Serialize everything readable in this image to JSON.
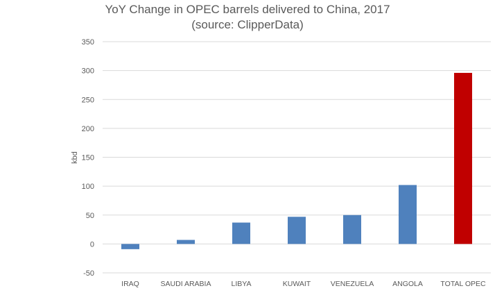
{
  "chart_data": {
    "type": "bar",
    "title": "YoY Change in OPEC barrels delivered to China, 2017",
    "subtitle": "(source: ClipperData)",
    "ylabel": "kbd",
    "xlabel": "",
    "ylim": [
      -50,
      350
    ],
    "yticks": [
      -50,
      0,
      50,
      100,
      150,
      200,
      250,
      300,
      350
    ],
    "grid": true,
    "legend": "none",
    "categories": [
      "IRAQ",
      "SAUDI ARABIA",
      "LIBYA",
      "KUWAIT",
      "VENEZUELA",
      "ANGOLA",
      "TOTAL OPEC"
    ],
    "values": [
      -9,
      7,
      37,
      47,
      50,
      102,
      296
    ],
    "colors": [
      "#4f81bd",
      "#4f81bd",
      "#4f81bd",
      "#4f81bd",
      "#4f81bd",
      "#4f81bd",
      "#c00000"
    ]
  }
}
